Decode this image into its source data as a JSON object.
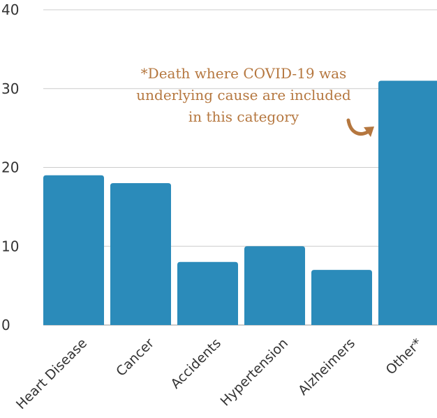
{
  "chart_data": {
    "type": "bar",
    "categories": [
      "Heart Disease",
      "Cancer",
      "Accidents",
      "Hypertension",
      "Alzheimers",
      "Other*"
    ],
    "values": [
      19,
      18,
      8,
      10,
      7,
      31
    ],
    "ylim": [
      0,
      40
    ],
    "yticks": [
      "0",
      "10",
      "20",
      "30",
      "40"
    ],
    "grid": true,
    "bar_color": "#2b8bba",
    "annotation": {
      "lines": [
        "*Death where COVID-19 was",
        "underlying cause are included",
        "in this category"
      ],
      "color": "#b5773f",
      "arrow": "curved arrow pointing to Other* bar"
    }
  }
}
